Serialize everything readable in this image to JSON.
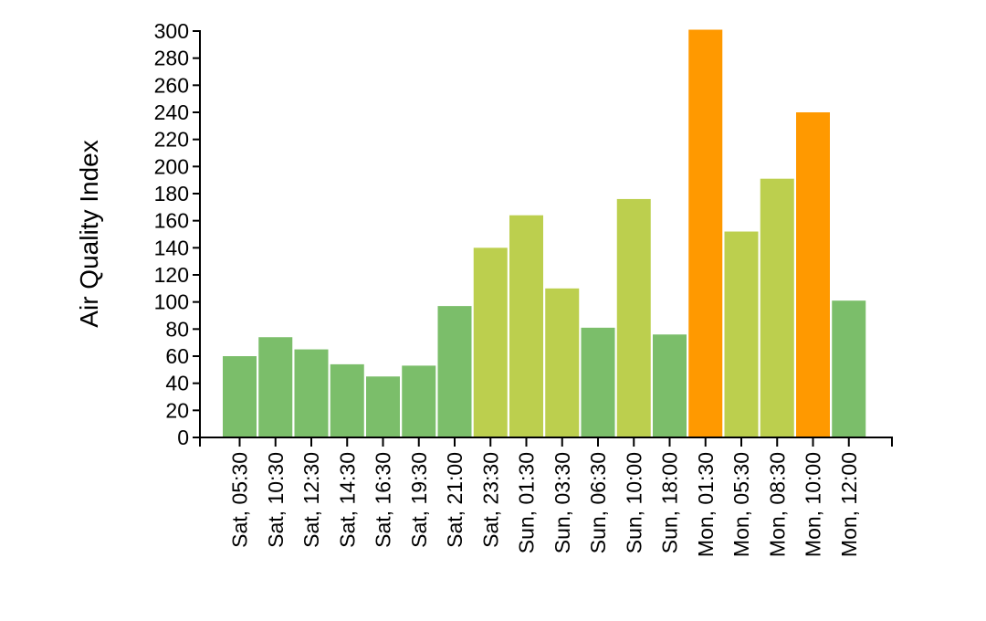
{
  "chart_data": {
    "type": "bar",
    "title": "",
    "xlabel": "",
    "ylabel": "Air Quality Index",
    "ylim": [
      0,
      300
    ],
    "yticks": [
      0,
      20,
      40,
      60,
      80,
      100,
      120,
      140,
      160,
      180,
      200,
      220,
      240,
      260,
      280,
      300
    ],
    "grid": false,
    "categories": [
      "Sat, 05:30",
      "Sat, 10:30",
      "Sat, 12:30",
      "Sat, 14:30",
      "Sat, 16:30",
      "Sat, 19:30",
      "Sat, 21:00",
      "Sat, 23:30",
      "Sun, 01:30",
      "Sun, 03:30",
      "Sun, 06:30",
      "Sun, 10:00",
      "Sun, 18:00",
      "Mon, 01:30",
      "Mon, 05:30",
      "Mon, 08:30",
      "Mon, 10:00",
      "Mon, 12:00"
    ],
    "values": [
      60,
      74,
      65,
      54,
      45,
      53,
      97,
      140,
      164,
      110,
      81,
      176,
      76,
      301,
      152,
      191,
      240,
      101
    ],
    "colors": [
      "#7bbe6a",
      "#7bbe6a",
      "#7bbe6a",
      "#7bbe6a",
      "#7bbe6a",
      "#7bbe6a",
      "#7bbe6a",
      "#bccf4e",
      "#bccf4e",
      "#bccf4e",
      "#7bbe6a",
      "#bccf4e",
      "#7bbe6a",
      "#ff9900",
      "#bccf4e",
      "#bccf4e",
      "#ff9900",
      "#7bbe6a"
    ]
  }
}
